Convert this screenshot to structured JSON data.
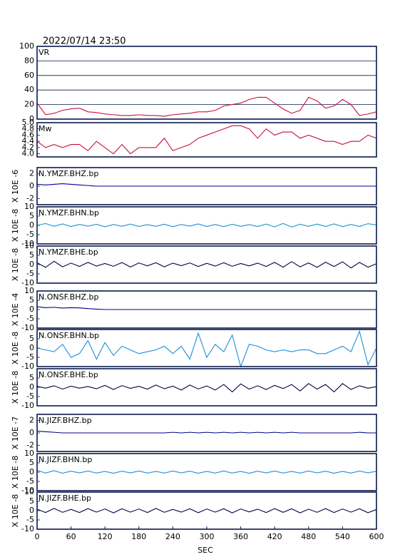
{
  "chart_data": [
    {
      "type": "line",
      "title": "2022/07/14 23:50",
      "label": "VR",
      "color": "#c8103c",
      "grid": true,
      "ylim": [
        0,
        100
      ],
      "yticks": [
        0,
        20,
        40,
        60,
        80,
        100
      ],
      "xlim": [
        0,
        600
      ],
      "x": [
        0,
        15,
        30,
        45,
        60,
        75,
        90,
        105,
        120,
        135,
        150,
        165,
        180,
        195,
        210,
        225,
        240,
        255,
        270,
        285,
        300,
        315,
        330,
        345,
        360,
        375,
        390,
        405,
        420,
        435,
        450,
        465,
        480,
        495,
        510,
        525,
        540,
        555,
        570,
        585,
        600
      ],
      "values": [
        22,
        6,
        8,
        12,
        14,
        15,
        10,
        9,
        7,
        6,
        5,
        5,
        6,
        5,
        5,
        4,
        6,
        7,
        8,
        10,
        10,
        12,
        18,
        20,
        22,
        27,
        30,
        30,
        22,
        14,
        8,
        12,
        30,
        25,
        15,
        18,
        27,
        20,
        5,
        7,
        10
      ]
    },
    {
      "type": "line",
      "label": "Mw",
      "color": "#c8103c",
      "grid": false,
      "ylim": [
        3.9,
        5.0
      ],
      "yticks": [
        {
          "value": 4,
          "label": "4.0"
        },
        4.2,
        4.4,
        4.6,
        4.8,
        {
          "value": 5,
          "label": "5.0"
        }
      ],
      "xlim": [
        0,
        600
      ],
      "x": [
        0,
        15,
        30,
        45,
        60,
        75,
        90,
        105,
        120,
        135,
        150,
        165,
        180,
        195,
        210,
        225,
        240,
        255,
        270,
        285,
        300,
        315,
        330,
        345,
        360,
        375,
        390,
        405,
        420,
        435,
        450,
        465,
        480,
        495,
        510,
        525,
        540,
        555,
        570,
        585,
        600
      ],
      "values": [
        4.4,
        4.2,
        4.3,
        4.2,
        4.3,
        4.3,
        4.1,
        4.4,
        4.2,
        4.0,
        4.3,
        4.0,
        4.2,
        4.2,
        4.2,
        4.5,
        4.1,
        4.2,
        4.3,
        4.5,
        4.6,
        4.7,
        4.8,
        4.9,
        4.9,
        4.8,
        4.5,
        4.8,
        4.6,
        4.7,
        4.7,
        4.5,
        4.6,
        4.5,
        4.4,
        4.4,
        4.3,
        4.4,
        4.4,
        4.6,
        4.5
      ]
    },
    {
      "type": "line",
      "label": "N.YMZF.BHZ.bp",
      "ylabel": "X 10E -6",
      "color": "#00008b",
      "ylim": [
        -3,
        3
      ],
      "yticks": [
        -2,
        0,
        2
      ],
      "xlim": [
        0,
        600
      ],
      "x": [
        0,
        15,
        30,
        45,
        60,
        75,
        90,
        105,
        120,
        135,
        150,
        165,
        180,
        195,
        210,
        225,
        240,
        255,
        270,
        285,
        300,
        315,
        330,
        345,
        360,
        375,
        390,
        405,
        420,
        435,
        450,
        465,
        480,
        495,
        510,
        525,
        540,
        555,
        570,
        585,
        600
      ],
      "values": [
        0.3,
        0.2,
        0.3,
        0.4,
        0.3,
        0.2,
        0.1,
        0,
        0,
        0,
        0,
        0,
        0,
        0,
        0,
        0,
        0,
        0,
        0,
        0,
        0,
        0,
        0,
        0,
        0,
        0,
        0,
        0,
        0,
        0,
        0,
        0,
        0,
        0,
        0,
        0,
        0,
        0,
        0,
        0,
        0
      ]
    },
    {
      "type": "line",
      "label": "N.YMZF.BHN.bp",
      "ylabel": "X 10E -8",
      "color": "#1e8fd8",
      "ylim": [
        -10,
        10
      ],
      "yticks": [
        -10,
        -5,
        0,
        5,
        10
      ],
      "xlim": [
        0,
        600
      ],
      "x": [
        0,
        15,
        30,
        45,
        60,
        75,
        90,
        105,
        120,
        135,
        150,
        165,
        180,
        195,
        210,
        225,
        240,
        255,
        270,
        285,
        300,
        315,
        330,
        345,
        360,
        375,
        390,
        405,
        420,
        435,
        450,
        465,
        480,
        495,
        510,
        525,
        540,
        555,
        570,
        585,
        600
      ],
      "values": [
        0,
        1,
        -0.5,
        0.8,
        -0.6,
        0.5,
        -0.4,
        0.6,
        -0.8,
        0.5,
        -0.5,
        0.7,
        -0.6,
        0.4,
        -0.5,
        0.6,
        -0.7,
        0.5,
        -0.4,
        0.8,
        -0.6,
        0.5,
        -0.7,
        0.6,
        -0.5,
        0.4,
        -0.6,
        0.7,
        -0.8,
        1,
        -0.9,
        0.6,
        -0.5,
        0.7,
        -0.6,
        0.8,
        -0.7,
        0.5,
        -0.6,
        0.9,
        0.2
      ]
    },
    {
      "type": "line",
      "label": "N.YMZF.BHE.bp",
      "ylabel": "X 10E -8",
      "color": "#00004a",
      "ylim": [
        -10,
        10
      ],
      "yticks": [
        -10,
        -5,
        0,
        5,
        10
      ],
      "xlim": [
        0,
        600
      ],
      "x": [
        0,
        15,
        30,
        45,
        60,
        75,
        90,
        105,
        120,
        135,
        150,
        165,
        180,
        195,
        210,
        225,
        240,
        255,
        270,
        285,
        300,
        315,
        330,
        345,
        360,
        375,
        390,
        405,
        420,
        435,
        450,
        465,
        480,
        495,
        510,
        525,
        540,
        555,
        570,
        585,
        600
      ],
      "values": [
        1,
        -1.5,
        1.8,
        -1.2,
        0.8,
        -1,
        1.2,
        -0.8,
        0.6,
        -0.9,
        1.1,
        -1.3,
        0.9,
        -0.7,
        1,
        -1.2,
        0.8,
        -0.6,
        0.9,
        -1,
        0.7,
        -0.8,
        1,
        -0.9,
        0.6,
        -0.7,
        0.8,
        -1,
        1.2,
        -1.4,
        1.6,
        -1.2,
        0.9,
        -1.5,
        1.3,
        -1,
        1.5,
        -1.8,
        1.2,
        -1.4,
        0.5
      ]
    },
    {
      "type": "line",
      "label": "N.ONSF.BHZ.bp",
      "ylabel": "X 10E -4",
      "color": "#00008b",
      "ylim": [
        -10,
        10
      ],
      "yticks": [
        -10,
        -5,
        0,
        5,
        10
      ],
      "xlim": [
        0,
        600
      ],
      "x": [
        0,
        15,
        30,
        45,
        60,
        75,
        90,
        105,
        120,
        135,
        150,
        165,
        180,
        195,
        210,
        225,
        240,
        255,
        270,
        285,
        300,
        315,
        330,
        345,
        360,
        375,
        390,
        405,
        420,
        435,
        450,
        465,
        480,
        495,
        510,
        525,
        540,
        555,
        570,
        585,
        600
      ],
      "values": [
        1.5,
        1,
        1.2,
        0.8,
        1,
        0.9,
        0.5,
        0.2,
        0,
        0,
        0,
        0,
        0,
        0,
        0,
        0,
        0,
        0,
        0,
        0,
        0,
        0,
        0,
        0,
        0,
        0,
        0,
        0,
        0,
        0,
        0,
        0,
        0,
        0,
        0,
        0,
        0,
        0,
        0,
        0,
        0
      ]
    },
    {
      "type": "line",
      "label": "N.ONSF.BHN.bp",
      "ylabel": "X 10E -8",
      "color": "#1e8fd8",
      "ylim": [
        -10,
        10
      ],
      "yticks": [
        -10,
        -5,
        0,
        5
      ],
      "xlim": [
        0,
        600
      ],
      "x": [
        0,
        15,
        30,
        45,
        60,
        75,
        90,
        105,
        120,
        135,
        150,
        165,
        180,
        195,
        210,
        225,
        240,
        255,
        270,
        285,
        300,
        315,
        330,
        345,
        360,
        375,
        390,
        405,
        420,
        435,
        450,
        465,
        480,
        495,
        510,
        525,
        540,
        555,
        570,
        585,
        600
      ],
      "values": [
        0,
        -1,
        -2,
        2,
        -5,
        -3,
        4,
        -6,
        3,
        -4,
        1,
        -1,
        -3,
        -2,
        -1,
        1,
        -3,
        1,
        -6,
        8,
        -5,
        2,
        -2,
        7,
        -10,
        2,
        1,
        -1,
        -2,
        -1,
        -2,
        -1,
        -1,
        -3,
        -3,
        -1,
        1,
        -2,
        9,
        -9,
        0
      ]
    },
    {
      "type": "line",
      "label": "N.ONSF.BHE.bp",
      "ylabel": "X 10E -8",
      "color": "#00004a",
      "ylim": [
        -10,
        10
      ],
      "yticks": [
        -10,
        -5,
        0,
        5
      ],
      "xlim": [
        0,
        600
      ],
      "x": [
        0,
        15,
        30,
        45,
        60,
        75,
        90,
        105,
        120,
        135,
        150,
        165,
        180,
        195,
        210,
        225,
        240,
        255,
        270,
        285,
        300,
        315,
        330,
        345,
        360,
        375,
        390,
        405,
        420,
        435,
        450,
        465,
        480,
        495,
        510,
        525,
        540,
        555,
        570,
        585,
        600
      ],
      "values": [
        0.5,
        -0.5,
        0.8,
        -1,
        0.6,
        -0.5,
        0.4,
        -0.8,
        1,
        -1.2,
        0.9,
        -0.6,
        0.5,
        -1,
        1.2,
        -0.8,
        0.6,
        -1.5,
        1.2,
        -0.9,
        0.7,
        -1.5,
        1.5,
        -2.5,
        1.8,
        -1,
        0.8,
        -1.2,
        1,
        -0.7,
        1.5,
        -2,
        2,
        -1,
        1.5,
        -2.5,
        2,
        -1.2,
        0.8,
        -0.5,
        0.3
      ]
    },
    {
      "type": "line",
      "label": "N.JIZF.BHZ.bp",
      "ylabel": "X 10E -7",
      "color": "#00008b",
      "ylim": [
        -3,
        3
      ],
      "yticks": [
        -2,
        0,
        2
      ],
      "xlim": [
        0,
        600
      ],
      "x": [
        0,
        15,
        30,
        45,
        60,
        75,
        90,
        105,
        120,
        135,
        150,
        165,
        180,
        195,
        210,
        225,
        240,
        255,
        270,
        285,
        300,
        315,
        330,
        345,
        360,
        375,
        390,
        405,
        420,
        435,
        450,
        465,
        480,
        495,
        510,
        525,
        540,
        555,
        570,
        585,
        600
      ],
      "values": [
        0.3,
        0.2,
        0.1,
        0,
        0,
        0,
        0,
        0,
        0,
        0,
        0,
        0,
        0,
        0,
        0,
        0,
        0.1,
        0,
        0.1,
        0,
        0.1,
        0,
        0.1,
        0,
        0.1,
        0,
        0.1,
        0,
        0.1,
        0,
        0.1,
        0,
        0,
        0,
        0,
        0,
        0,
        0,
        0.1,
        0,
        0
      ]
    },
    {
      "type": "line",
      "label": "N.JIZF.BHN.bp",
      "ylabel": "X 10E -8",
      "color": "#1e8fd8",
      "ylim": [
        -10,
        10
      ],
      "yticks": [
        -10,
        -5,
        0,
        5,
        10
      ],
      "xlim": [
        0,
        600
      ],
      "x": [
        0,
        15,
        30,
        45,
        60,
        75,
        90,
        105,
        120,
        135,
        150,
        165,
        180,
        195,
        210,
        225,
        240,
        255,
        270,
        285,
        300,
        315,
        330,
        345,
        360,
        375,
        390,
        405,
        420,
        435,
        450,
        465,
        480,
        495,
        510,
        525,
        540,
        555,
        570,
        585,
        600
      ],
      "values": [
        1,
        -0.5,
        0.8,
        -0.6,
        0.5,
        -0.4,
        0.6,
        -0.5,
        0.4,
        -0.6,
        0.5,
        -0.4,
        0.6,
        -0.5,
        0.4,
        -0.5,
        0.6,
        -0.4,
        0.5,
        -0.6,
        0.4,
        -0.5,
        0.6,
        -0.5,
        0.4,
        -0.6,
        0.5,
        -0.4,
        0.6,
        -0.5,
        0.4,
        -0.5,
        0.6,
        -0.4,
        0.5,
        -0.6,
        0.4,
        -0.5,
        0.6,
        -0.4,
        0.5
      ]
    },
    {
      "type": "line",
      "label": "N.JIZF.BHE.bp",
      "ylabel": "X 10E -8",
      "color": "#00004a",
      "ylim": [
        -10,
        10
      ],
      "yticks": [
        -10,
        -5,
        0,
        5,
        10
      ],
      "xlim": [
        0,
        600
      ],
      "xticks": [
        0,
        60,
        120,
        180,
        240,
        300,
        360,
        420,
        480,
        540,
        600
      ],
      "xlabel": "SEC",
      "x": [
        0,
        15,
        30,
        45,
        60,
        75,
        90,
        105,
        120,
        135,
        150,
        165,
        180,
        195,
        210,
        225,
        240,
        255,
        270,
        285,
        300,
        315,
        330,
        345,
        360,
        375,
        390,
        405,
        420,
        435,
        450,
        465,
        480,
        495,
        510,
        525,
        540,
        555,
        570,
        585,
        600
      ],
      "values": [
        0.8,
        -1,
        1.2,
        -0.9,
        0.7,
        -1,
        1.1,
        -0.8,
        0.9,
        -1.2,
        1,
        -0.8,
        0.9,
        -1,
        1.2,
        -0.9,
        0.7,
        -0.8,
        1,
        -1.1,
        0.9,
        -0.8,
        1,
        -1.2,
        0.9,
        -0.7,
        0.8,
        -1,
        1.1,
        -0.9,
        1,
        -1.2,
        0.8,
        -0.9,
        1.1,
        -1,
        0.9,
        -0.8,
        1,
        -1.1,
        0.6
      ]
    }
  ]
}
